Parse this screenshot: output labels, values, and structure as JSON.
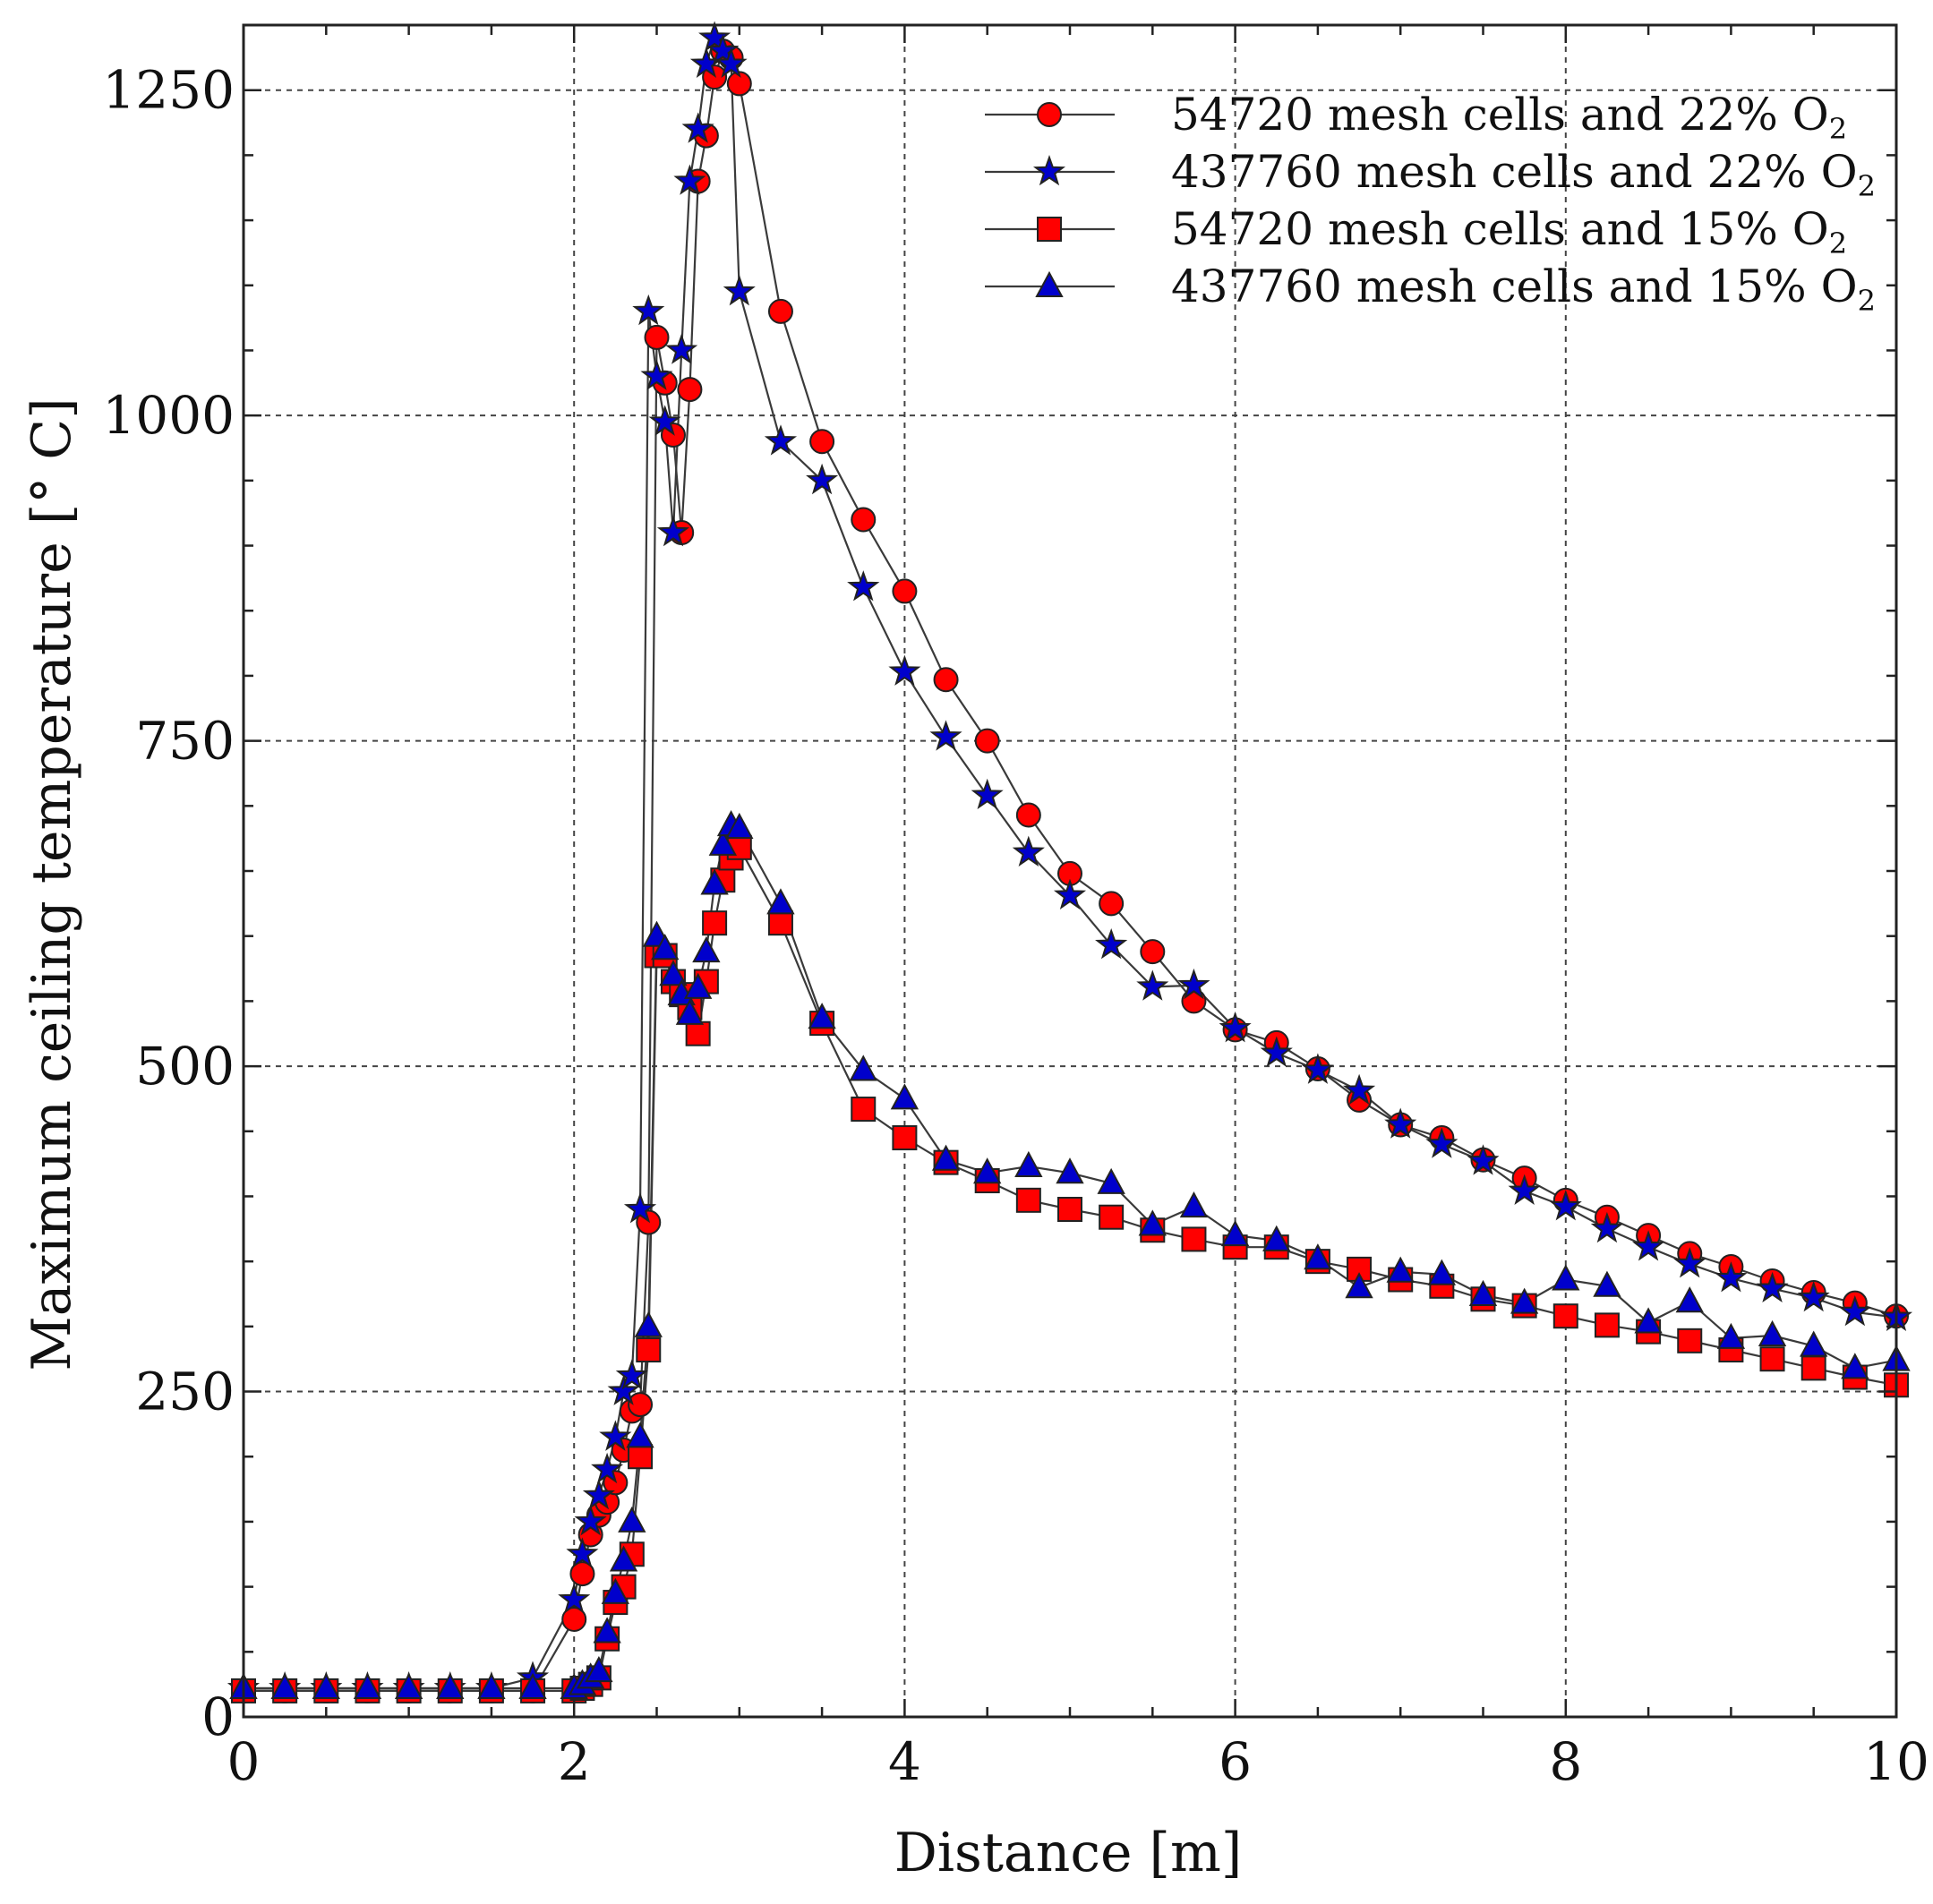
{
  "chart_data": {
    "type": "line",
    "title": "",
    "xlabel": "Distance [m]",
    "ylabel": "Maximum ceiling temperature [° C]",
    "xlim": [
      0,
      10
    ],
    "ylim": [
      0,
      1300
    ],
    "xticks": [
      0,
      2,
      4,
      6,
      8,
      10
    ],
    "yticks": [
      0,
      250,
      500,
      750,
      1000,
      1250
    ],
    "xtick_labels": [
      "0",
      "2",
      "4",
      "6",
      "8",
      "10"
    ],
    "ytick_labels": [
      "0",
      "250",
      "500",
      "750",
      "1000",
      "1250"
    ],
    "grid": true,
    "legend_position": "top-right",
    "series": [
      {
        "name": "54720 mesh cells and 22% O2",
        "label_main": "54720 mesh cells and 22% O",
        "label_sub": "2",
        "marker": "circle",
        "color": "#ff0000",
        "x": [
          0,
          0.25,
          0.5,
          0.75,
          1.0,
          1.25,
          1.5,
          1.75,
          2.0,
          2.05,
          2.1,
          2.15,
          2.2,
          2.25,
          2.3,
          2.35,
          2.4,
          2.45,
          2.5,
          2.55,
          2.6,
          2.65,
          2.7,
          2.75,
          2.8,
          2.85,
          2.9,
          2.95,
          3.0,
          3.25,
          3.5,
          3.75,
          4.0,
          4.25,
          4.5,
          4.75,
          5.0,
          5.25,
          5.5,
          5.75,
          6.0,
          6.25,
          6.5,
          6.75,
          7.0,
          7.25,
          7.5,
          7.75,
          8.0,
          8.25,
          8.5,
          8.75,
          9.0,
          9.25,
          9.5,
          9.75,
          10.0
        ],
        "y": [
          20,
          20,
          20,
          20,
          20,
          20,
          20,
          20,
          75,
          110,
          140,
          155,
          165,
          180,
          205,
          235,
          240,
          380,
          1060,
          1025,
          985,
          910,
          1020,
          1180,
          1215,
          1260,
          1280,
          1275,
          1255,
          1080,
          980,
          920,
          865,
          797,
          750,
          693,
          648,
          625,
          588,
          550,
          528,
          518,
          498,
          474,
          455,
          445,
          428,
          414,
          397,
          384,
          370,
          356,
          346,
          335,
          326,
          318,
          308
        ]
      },
      {
        "name": "437760 mesh cells and 22% O2",
        "label_main": "437760 mesh cells and 22% O",
        "label_sub": "2",
        "marker": "star",
        "color": "#0000cc",
        "x": [
          0,
          0.25,
          0.5,
          0.75,
          1.0,
          1.25,
          1.5,
          1.75,
          2.0,
          2.05,
          2.1,
          2.15,
          2.2,
          2.25,
          2.3,
          2.35,
          2.4,
          2.45,
          2.5,
          2.55,
          2.6,
          2.65,
          2.7,
          2.75,
          2.8,
          2.85,
          2.9,
          2.95,
          3.0,
          3.25,
          3.5,
          3.75,
          4.0,
          4.25,
          4.5,
          4.75,
          5.0,
          5.25,
          5.5,
          5.75,
          6.0,
          6.25,
          6.5,
          6.75,
          7.0,
          7.25,
          7.5,
          7.75,
          8.0,
          8.25,
          8.5,
          8.75,
          9.0,
          9.25,
          9.5,
          9.75,
          10.0
        ],
        "y": [
          22,
          22,
          22,
          22,
          22,
          22,
          22,
          30,
          90,
          125,
          150,
          170,
          190,
          215,
          250,
          262,
          390,
          1080,
          1030,
          995,
          910,
          1050,
          1180,
          1220,
          1270,
          1290,
          1280,
          1270,
          1095,
          980,
          950,
          868,
          803,
          753,
          708,
          664,
          631,
          593,
          561,
          562,
          529,
          510,
          497,
          481,
          455,
          440,
          427,
          404,
          392,
          375,
          361,
          348,
          337,
          329,
          322,
          311,
          307
        ]
      },
      {
        "name": "54720 mesh cells and 15% O2",
        "label_main": "54720 mesh cells and 15% O",
        "label_sub": "2",
        "marker": "square",
        "color": "#ff0000",
        "x": [
          0,
          0.25,
          0.5,
          0.75,
          1.0,
          1.25,
          1.5,
          1.75,
          2.0,
          2.05,
          2.1,
          2.15,
          2.2,
          2.25,
          2.3,
          2.35,
          2.4,
          2.45,
          2.5,
          2.55,
          2.6,
          2.65,
          2.7,
          2.75,
          2.8,
          2.85,
          2.9,
          2.95,
          3.0,
          3.25,
          3.5,
          3.75,
          4.0,
          4.25,
          4.5,
          4.75,
          5.0,
          5.25,
          5.5,
          5.75,
          6.0,
          6.25,
          6.5,
          6.75,
          7.0,
          7.25,
          7.5,
          7.75,
          8.0,
          8.25,
          8.5,
          8.75,
          9.0,
          9.25,
          9.5,
          9.75,
          10.0
        ],
        "y": [
          20,
          20,
          20,
          20,
          20,
          20,
          20,
          20,
          20,
          22,
          25,
          30,
          60,
          88,
          100,
          125,
          200,
          282,
          585,
          585,
          565,
          555,
          545,
          525,
          565,
          610,
          643,
          660,
          668,
          610,
          533,
          467,
          445,
          426,
          412,
          397,
          390,
          384,
          374,
          367,
          361,
          361,
          350,
          344,
          336,
          331,
          321,
          316,
          308,
          301,
          296,
          289,
          282,
          275,
          268,
          261,
          255
        ]
      },
      {
        "name": "437760 mesh cells and 15% O2",
        "label_main": "437760 mesh cells and 15% O",
        "label_sub": "2",
        "marker": "triangle",
        "color": "#0000cc",
        "x": [
          0,
          0.25,
          0.5,
          0.75,
          1.0,
          1.25,
          1.5,
          1.75,
          2.0,
          2.05,
          2.1,
          2.15,
          2.2,
          2.25,
          2.3,
          2.35,
          2.4,
          2.45,
          2.5,
          2.55,
          2.6,
          2.65,
          2.7,
          2.75,
          2.8,
          2.85,
          2.9,
          2.95,
          3.0,
          3.25,
          3.5,
          3.75,
          4.0,
          4.25,
          4.5,
          4.75,
          5.0,
          5.25,
          5.5,
          5.75,
          6.0,
          6.25,
          6.5,
          6.75,
          7.0,
          7.25,
          7.5,
          7.75,
          8.0,
          8.25,
          8.5,
          8.75,
          9.0,
          9.25,
          9.5,
          9.75,
          10.0
        ],
        "y": [
          22,
          22,
          22,
          22,
          22,
          22,
          22,
          22,
          22,
          25,
          30,
          35,
          65,
          95,
          120,
          150,
          215,
          300,
          600,
          590,
          570,
          555,
          540,
          560,
          588,
          640,
          670,
          685,
          683,
          625,
          537,
          497,
          475,
          428,
          418,
          423,
          418,
          410,
          378,
          392,
          370,
          366,
          352,
          330,
          342,
          340,
          324,
          318,
          336,
          331,
          303,
          319,
          291,
          293,
          285,
          268,
          274
        ]
      }
    ]
  }
}
